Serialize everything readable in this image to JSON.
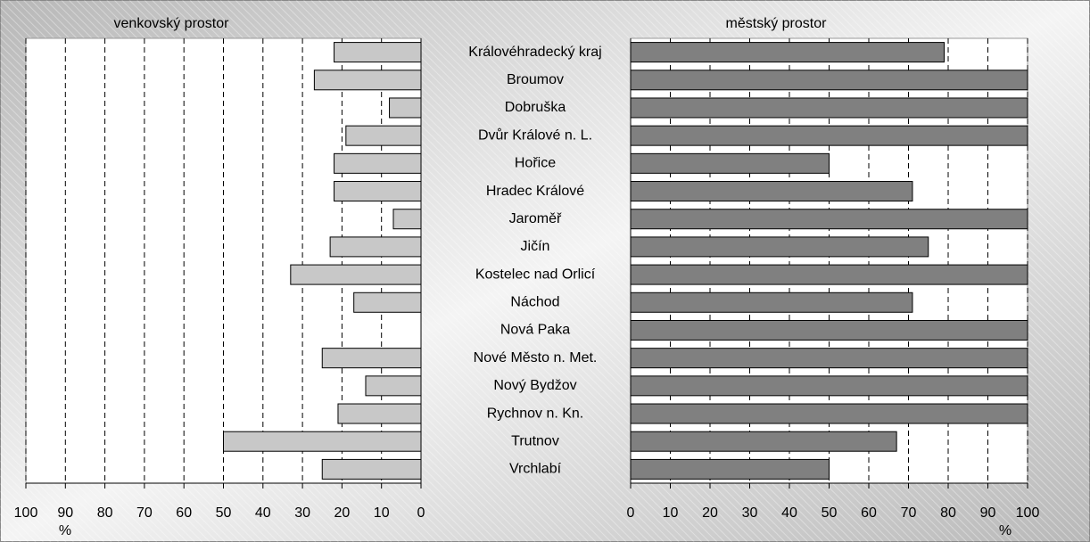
{
  "chart_data": [
    {
      "type": "barh",
      "title": "venkovský prostor",
      "xlabel": "%",
      "categories": [
        "Královéhradecký kraj",
        "Broumov",
        "Dobruška",
        "Dvůr Králové n. L.",
        "Hořice",
        "Hradec Králové",
        "Jaroměř",
        "Jičín",
        "Kostelec nad Orlicí",
        "Náchod",
        "Nová Paka",
        "Nové Město n. Met.",
        "Nový Bydžov",
        "Rychnov n. Kn.",
        "Trutnov",
        "Vrchlabí"
      ],
      "values": [
        22,
        27,
        8,
        19,
        22,
        22,
        7,
        23,
        33,
        17,
        0,
        25,
        14,
        21,
        50,
        25
      ],
      "color": "#c8c8c8",
      "xlim": [
        100,
        0
      ],
      "xticks": [
        100,
        90,
        80,
        70,
        60,
        50,
        40,
        30,
        20,
        10,
        0
      ],
      "grid": true
    },
    {
      "type": "barh",
      "title": "městský prostor",
      "xlabel": "%",
      "values": [
        79,
        100,
        100,
        100,
        50,
        71,
        100,
        75,
        100,
        71,
        100,
        100,
        100,
        100,
        67,
        50
      ],
      "color": "#808080",
      "xlim": [
        0,
        100
      ],
      "xticks": [
        0,
        10,
        20,
        30,
        40,
        50,
        60,
        70,
        80,
        90,
        100
      ],
      "grid": true
    }
  ]
}
